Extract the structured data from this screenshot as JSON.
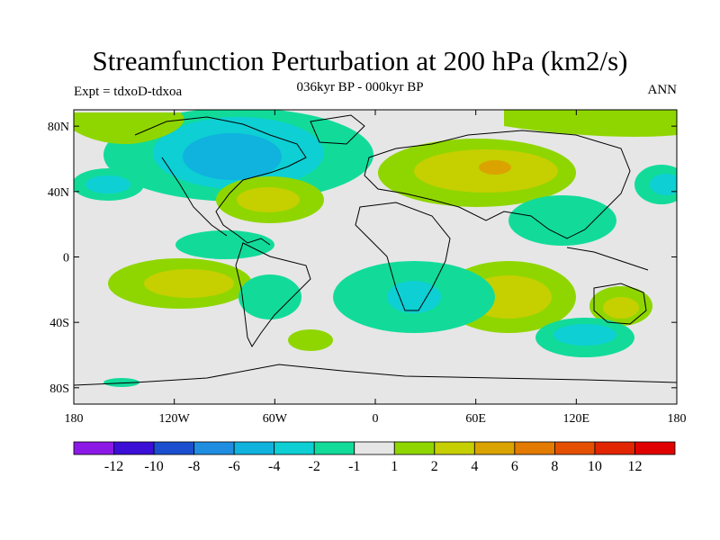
{
  "title": "Streamfunction Perturbation at 200 hPa (km2/s)",
  "subtitle": "036kyr BP - 000kyr BP",
  "left_label": "Expt = tdxoD-tdxoa",
  "right_label": "ANN",
  "lat_ticks": [
    {
      "label": "80N",
      "value": 80
    },
    {
      "label": "40N",
      "value": 40
    },
    {
      "label": "0",
      "value": 0
    },
    {
      "label": "40S",
      "value": -40
    },
    {
      "label": "80S",
      "value": -80
    }
  ],
  "lon_ticks": [
    {
      "label": "180",
      "value": -180
    },
    {
      "label": "120W",
      "value": -120
    },
    {
      "label": "60W",
      "value": -60
    },
    {
      "label": "0",
      "value": 0
    },
    {
      "label": "60E",
      "value": 60
    },
    {
      "label": "120E",
      "value": 120
    },
    {
      "label": "180",
      "value": 180
    }
  ],
  "colorbar": {
    "colors": [
      "#8c19e6",
      "#3c0fd6",
      "#1b4fcf",
      "#1f8ee0",
      "#10b2de",
      "#0dcfd4",
      "#12db9a",
      "#e6e6e6",
      "#8fd600",
      "#c6cf00",
      "#dba300",
      "#e37b00",
      "#e45000",
      "#e02500",
      "#e00000"
    ],
    "labels": [
      "-12",
      "-10",
      "-8",
      "-6",
      "-4",
      "-2",
      "-1",
      "1",
      "2",
      "4",
      "6",
      "8",
      "10",
      "12"
    ]
  }
}
